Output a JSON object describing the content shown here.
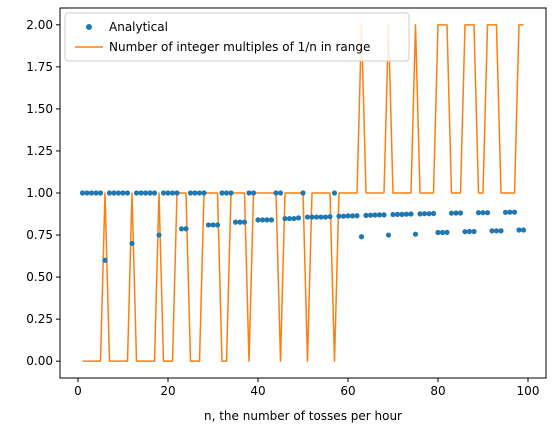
{
  "chart_data": {
    "type": "line",
    "title": "",
    "xlabel": "n, the number of tosses per hour",
    "ylabel": "",
    "xlim": [
      -4,
      104
    ],
    "ylim": [
      -0.1,
      2.1
    ],
    "x_ticks": [
      0,
      20,
      40,
      60,
      80,
      100
    ],
    "y_ticks": [
      0.0,
      0.25,
      0.5,
      0.75,
      1.0,
      1.25,
      1.5,
      1.75,
      2.0
    ],
    "x_tick_labels": [
      "0",
      "20",
      "40",
      "60",
      "80",
      "100"
    ],
    "y_tick_labels": [
      "0.00",
      "0.25",
      "0.50",
      "0.75",
      "1.00",
      "1.25",
      "1.50",
      "1.75",
      "2.00"
    ],
    "grid": false,
    "legend_position": "top-left",
    "x": [
      1,
      2,
      3,
      4,
      5,
      6,
      7,
      8,
      9,
      10,
      11,
      12,
      13,
      14,
      15,
      16,
      17,
      18,
      19,
      20,
      21,
      22,
      23,
      24,
      25,
      26,
      27,
      28,
      29,
      30,
      31,
      32,
      33,
      34,
      35,
      36,
      37,
      38,
      39,
      40,
      41,
      42,
      43,
      44,
      45,
      46,
      47,
      48,
      49,
      50,
      51,
      52,
      53,
      54,
      55,
      56,
      57,
      58,
      59,
      60,
      61,
      62,
      63,
      64,
      65,
      66,
      67,
      68,
      69,
      70,
      71,
      72,
      73,
      74,
      75,
      76,
      77,
      78,
      79,
      80,
      81,
      82,
      83,
      84,
      85,
      86,
      87,
      88,
      89,
      90,
      91,
      92,
      93,
      94,
      95,
      96,
      97,
      98,
      99
    ],
    "series": [
      {
        "name": "Analytical",
        "style": "scatter",
        "color": "#1f77b4",
        "values": [
          1,
          1,
          1,
          1,
          1,
          0.6,
          1,
          1,
          1,
          1,
          1,
          0.7,
          1,
          1,
          1,
          1,
          1,
          0.75,
          1,
          1,
          1,
          1,
          0.787,
          0.787,
          1,
          1,
          1,
          1,
          0.81,
          0.81,
          0.81,
          1,
          1,
          1,
          0.827,
          0.827,
          0.827,
          1,
          1,
          0.84,
          0.84,
          0.84,
          0.84,
          1,
          1,
          0.848,
          0.848,
          0.848,
          0.852,
          1,
          0.857,
          0.857,
          0.857,
          0.857,
          0.857,
          0.86,
          1,
          0.862,
          0.862,
          0.864,
          0.864,
          0.865,
          0.74,
          0.867,
          0.868,
          0.869,
          0.87,
          0.87,
          0.75,
          0.872,
          0.873,
          0.873,
          0.874,
          0.875,
          0.755,
          0.876,
          0.877,
          0.877,
          0.878,
          0.765,
          0.765,
          0.766,
          0.88,
          0.881,
          0.881,
          0.77,
          0.771,
          0.771,
          0.883,
          0.883,
          0.883,
          0.775,
          0.775,
          0.775,
          0.885,
          0.886,
          0.886,
          0.78,
          0.78
        ]
      },
      {
        "name": "Number of integer multiples of 1/n in range",
        "style": "line",
        "color": "#ff7f0e",
        "values": [
          0,
          0,
          0,
          0,
          0,
          1,
          0,
          0,
          0,
          0,
          0,
          1,
          0,
          0,
          0,
          0,
          0,
          1,
          0,
          0,
          0,
          1,
          1,
          1,
          0,
          0,
          0,
          1,
          1,
          1,
          1,
          0,
          0,
          1,
          1,
          1,
          1,
          0,
          1,
          1,
          1,
          1,
          1,
          1,
          0,
          1,
          1,
          1,
          1,
          1,
          0,
          1,
          1,
          1,
          1,
          1,
          0,
          1,
          1,
          1,
          1,
          1,
          2,
          1,
          1,
          1,
          1,
          1,
          2,
          1,
          1,
          1,
          1,
          1,
          2,
          1,
          1,
          1,
          1,
          2,
          2,
          2,
          1,
          1,
          1,
          2,
          2,
          2,
          1,
          1,
          2,
          2,
          2,
          1,
          1,
          1,
          1,
          2,
          2
        ]
      }
    ]
  }
}
